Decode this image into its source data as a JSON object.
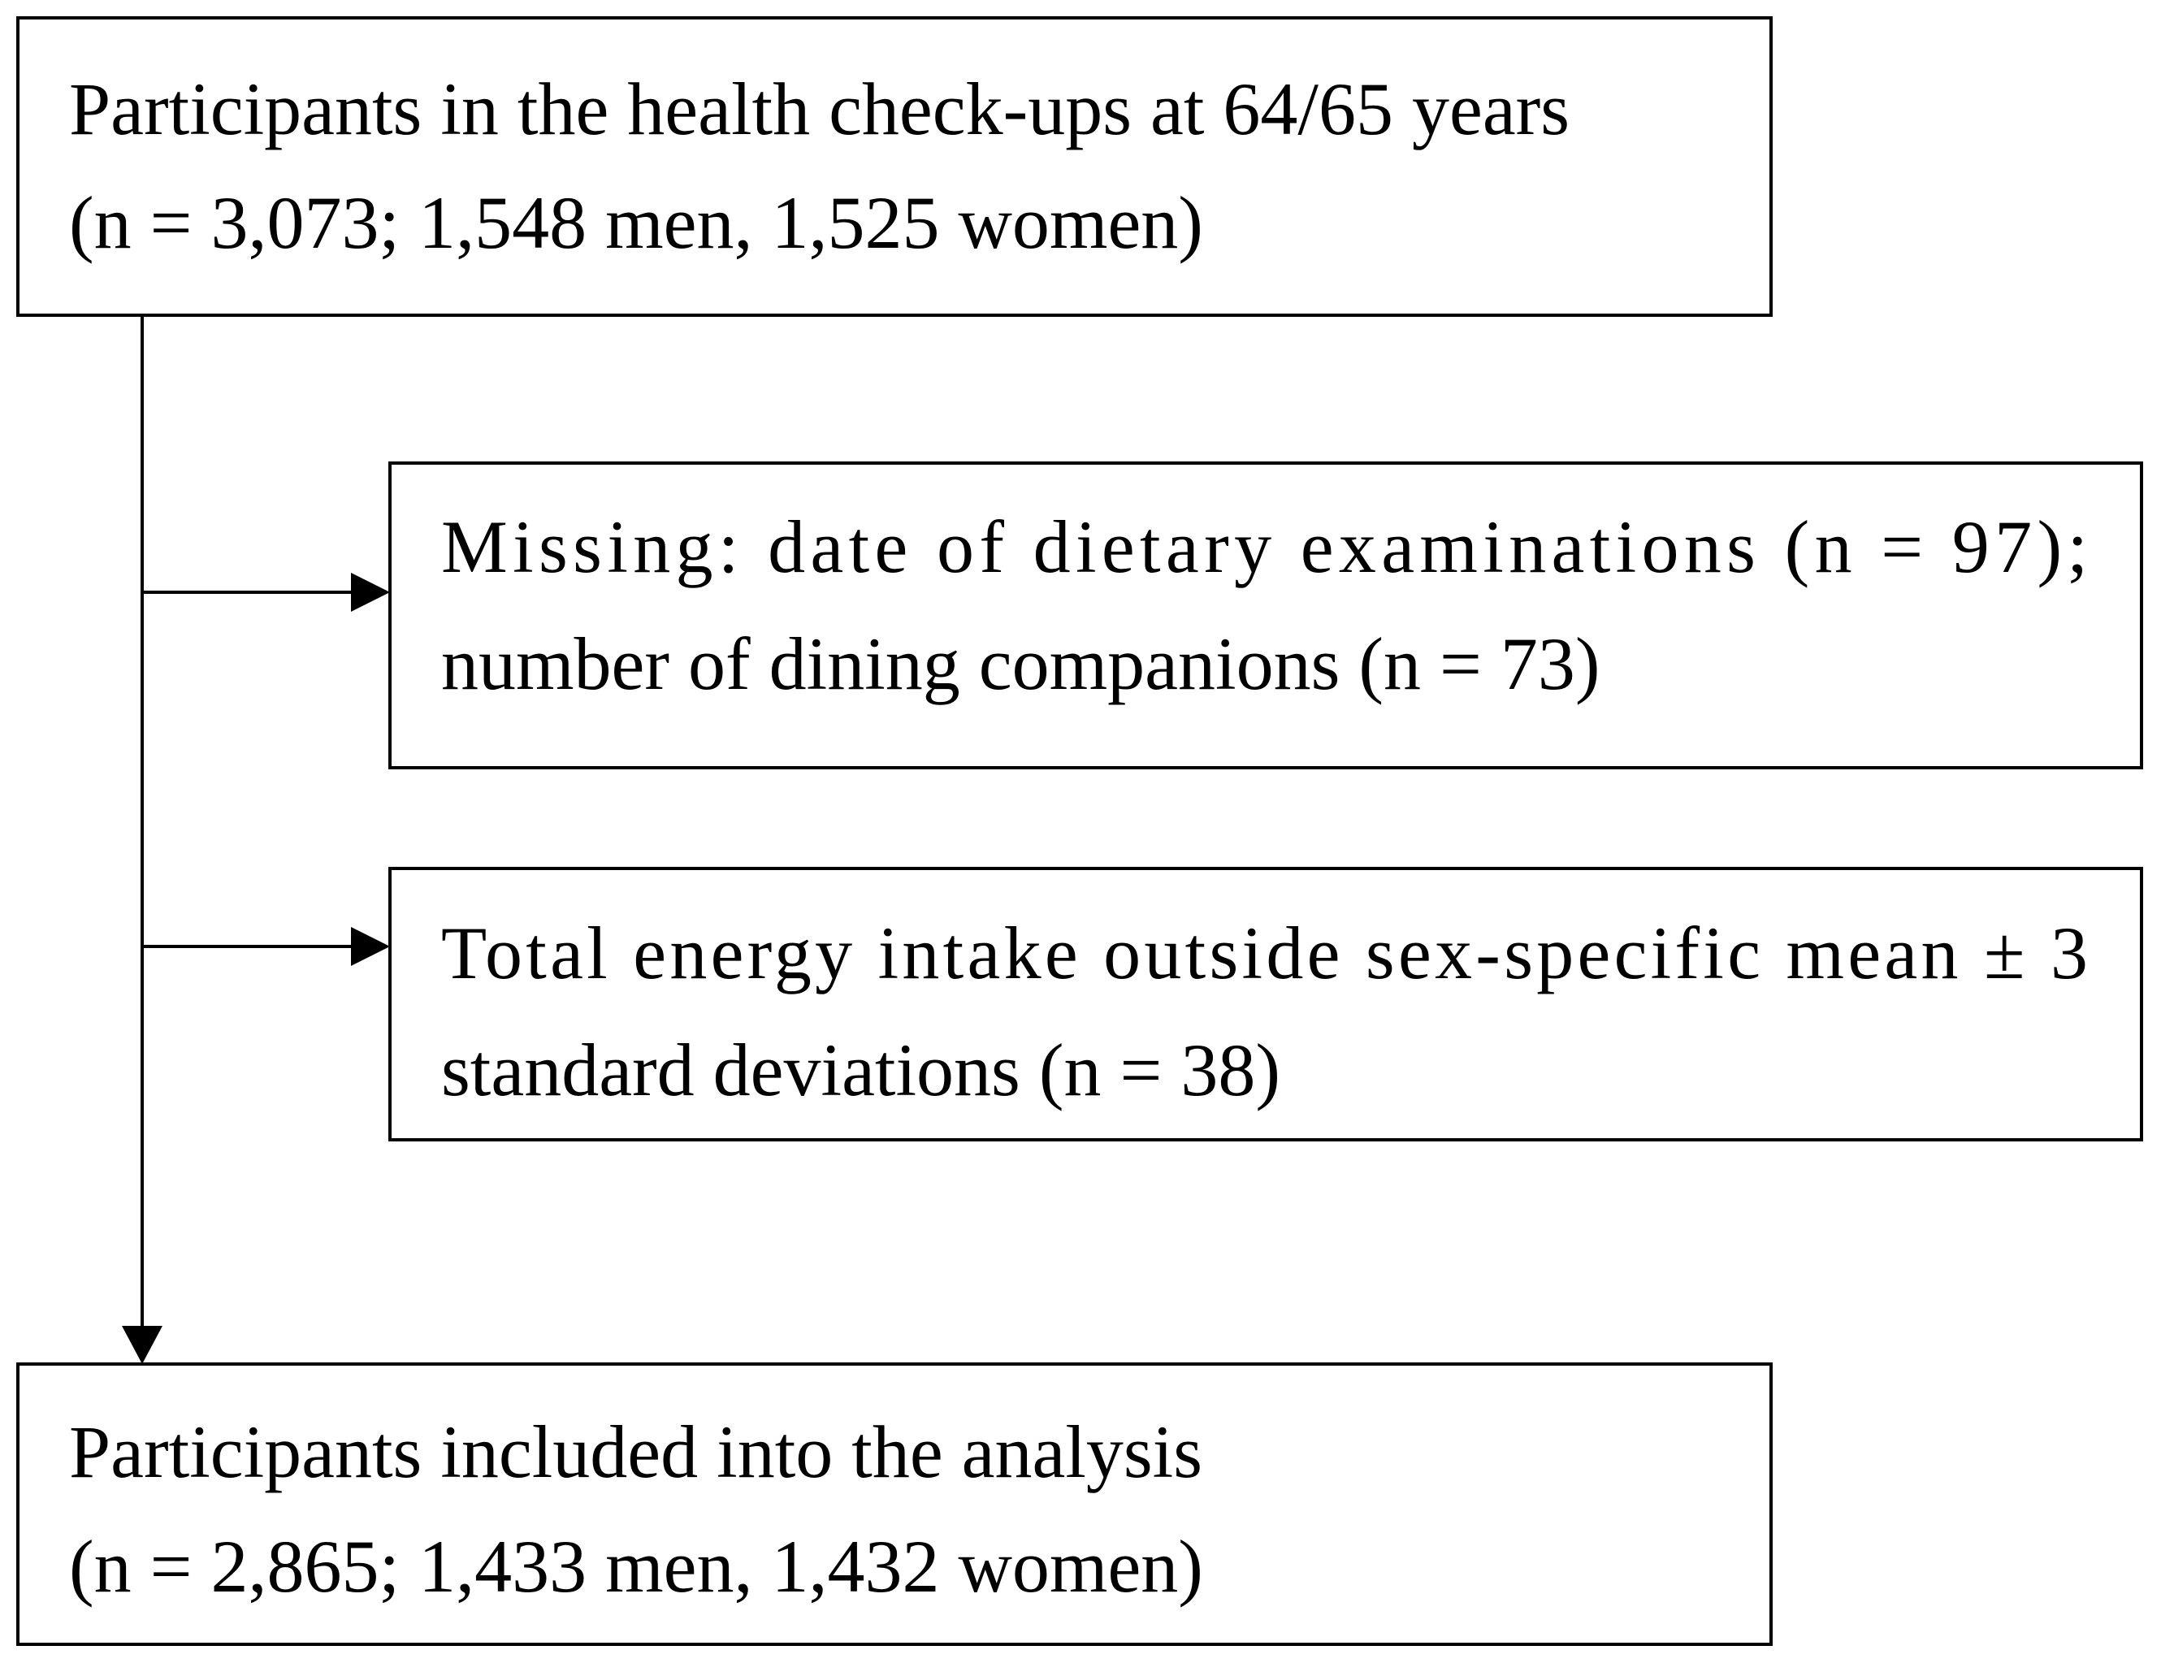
{
  "nodes": [
    {
      "lines": [
        "Participants in the health check-ups at 64/65 years",
        "(n = 3,073; 1,548 men, 1,525 women)"
      ]
    },
    {
      "lines": [
        "Missing: date of dietary examinations (n = 97);",
        "number of dining companions (n = 73)"
      ]
    },
    {
      "lines": [
        "Total energy intake outside sex-specific mean ± 3",
        "standard deviations (n = 38)"
      ]
    },
    {
      "lines": [
        "Participants included into the analysis",
        "(n = 2,865; 1,433 men, 1,432 women)"
      ]
    }
  ]
}
